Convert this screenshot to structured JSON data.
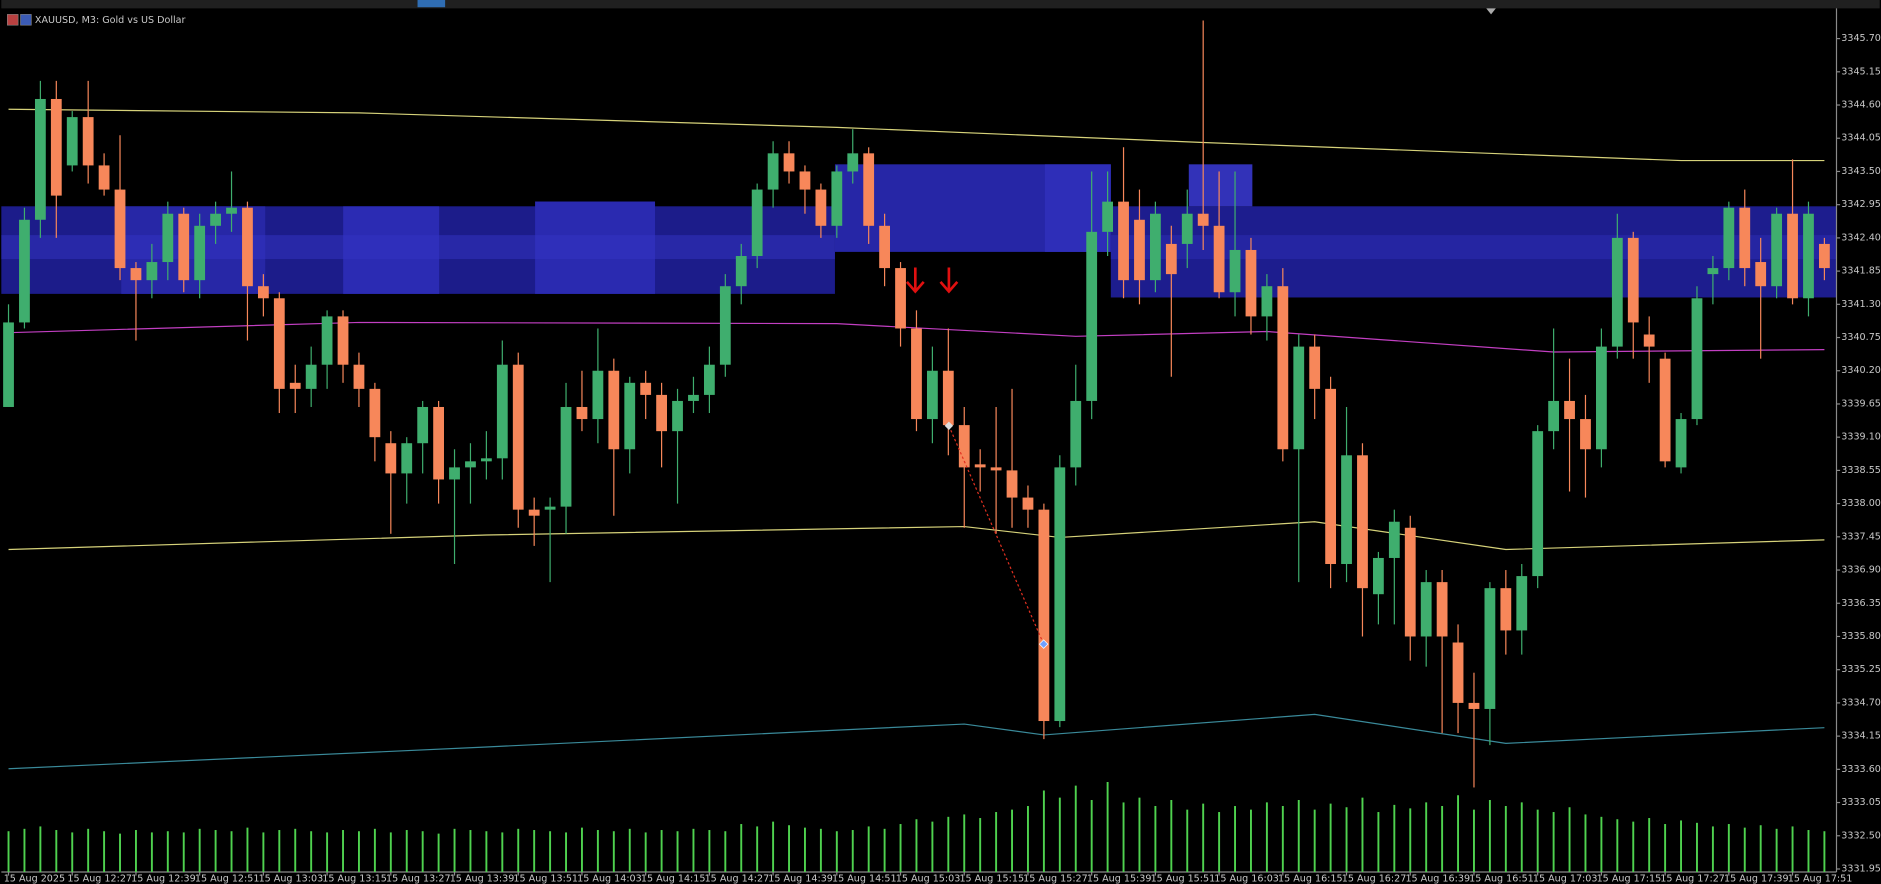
{
  "chart_data": {
    "type": "candlestick",
    "title": "XAUUSD, M3:  Gold vs US Dollar",
    "categories": [
      "15 Aug 2025",
      null,
      null,
      null,
      "15 Aug 12:27",
      null,
      null,
      null,
      "15 Aug 12:39",
      null,
      null,
      null,
      "15 Aug 12:51",
      null,
      null,
      null,
      "15 Aug 13:03",
      null,
      null,
      null,
      "15 Aug 13:15",
      null,
      null,
      null,
      "15 Aug 13:27",
      null,
      null,
      null,
      "15 Aug 13:39",
      null,
      null,
      null,
      "15 Aug 13:51",
      null,
      null,
      null,
      "15 Aug 14:03",
      null,
      null,
      null,
      "15 Aug 14:15",
      null,
      null,
      null,
      "15 Aug 14:27",
      null,
      null,
      null,
      "15 Aug 14:39",
      null,
      null,
      null,
      "15 Aug 14:51",
      null,
      null,
      null,
      "15 Aug 15:03",
      null,
      null,
      null,
      "15 Aug 15:15",
      null,
      null,
      null,
      "15 Aug 15:27",
      null,
      null,
      null,
      "15 Aug 15:39",
      null,
      null,
      null,
      "15 Aug 15:51",
      null,
      null,
      null,
      "15 Aug 16:03",
      null,
      null,
      null,
      "15 Aug 16:15",
      null,
      null,
      null,
      "15 Aug 16:27",
      null,
      null,
      null,
      "15 Aug 16:39",
      null,
      null,
      null,
      "15 Aug 16:51",
      null,
      null,
      null,
      "15 Aug 17:03",
      null,
      null,
      null,
      "15 Aug 17:15",
      null,
      null,
      null,
      "15 Aug 17:27",
      null,
      null,
      null,
      "15 Aug 17:39",
      null,
      null,
      null,
      "15 Aug 17:51",
      null,
      null
    ],
    "open": [
      3339.6,
      3341.0,
      3342.7,
      3344.7,
      3343.6,
      3344.4,
      3343.6,
      3343.2,
      3341.9,
      3341.7,
      3342.0,
      3342.8,
      3341.7,
      3342.6,
      3342.8,
      3342.9,
      3341.6,
      3341.4,
      3340.0,
      3339.9,
      3340.3,
      3341.1,
      3340.3,
      3339.9,
      3339.0,
      3338.5,
      3339.0,
      3339.6,
      3338.4,
      3338.6,
      3338.7,
      3338.75,
      3340.3,
      3337.9,
      3337.9,
      3337.95,
      3339.6,
      3339.4,
      3340.2,
      3338.9,
      3340.0,
      3339.8,
      3339.2,
      3339.7,
      3339.8,
      3340.3,
      3341.6,
      3342.1,
      3343.2,
      3343.8,
      3343.5,
      3343.2,
      3342.6,
      3343.5,
      3343.8,
      3342.6,
      3341.9,
      3340.9,
      3339.4,
      3340.2,
      3339.3,
      3338.65,
      3338.6,
      3338.55,
      3338.1,
      3337.9,
      3334.4,
      3338.6,
      3339.7,
      3342.5,
      3343.0,
      3342.7,
      3341.7,
      3342.3,
      3342.3,
      3342.8,
      3342.6,
      3341.5,
      3342.2,
      3341.1,
      3341.6,
      3338.9,
      3340.6,
      3339.9,
      3337.0,
      3338.8,
      3336.5,
      3337.1,
      3337.6,
      3335.8,
      3336.7,
      3335.7,
      3334.7,
      3334.6,
      3336.6,
      3335.9,
      3336.8,
      3339.2,
      3339.7,
      3339.4,
      3338.9,
      3340.6,
      3342.4,
      3340.8,
      3340.4,
      3338.6,
      3339.4,
      3341.8,
      3341.9,
      3342.9,
      3342.0,
      3341.6,
      3342.8,
      3341.4,
      3342.3
    ],
    "high": [
      3341.3,
      3342.9,
      3345.0,
      3345.0,
      3344.5,
      3345.0,
      3343.8,
      3344.1,
      3342.0,
      3342.3,
      3343.0,
      3342.9,
      3342.8,
      3343.0,
      3343.5,
      3343.0,
      3341.8,
      3341.5,
      3340.3,
      3340.6,
      3341.2,
      3341.2,
      3340.5,
      3340.0,
      3339.2,
      3339.1,
      3339.7,
      3339.7,
      3338.9,
      3339.0,
      3339.2,
      3340.7,
      3340.5,
      3338.1,
      3338.1,
      3340.0,
      3340.2,
      3340.9,
      3340.4,
      3340.1,
      3340.2,
      3340.0,
      3339.9,
      3340.1,
      3340.6,
      3341.8,
      3342.3,
      3343.3,
      3344.0,
      3344.0,
      3343.6,
      3343.3,
      3343.6,
      3344.2,
      3343.9,
      3342.8,
      3342.0,
      3341.2,
      3340.6,
      3340.9,
      3339.6,
      3338.9,
      3339.6,
      3339.9,
      3338.3,
      3338.0,
      3338.8,
      3340.3,
      3343.5,
      3343.5,
      3343.9,
      3343.2,
      3343.0,
      3342.6,
      3343.2,
      3346.0,
      3343.5,
      3343.5,
      3342.4,
      3341.8,
      3341.9,
      3340.8,
      3340.8,
      3340.1,
      3339.6,
      3339.0,
      3337.2,
      3337.9,
      3337.8,
      3336.9,
      3336.9,
      3336.0,
      3335.2,
      3336.7,
      3336.9,
      3337.0,
      3339.3,
      3340.9,
      3340.4,
      3339.8,
      3340.9,
      3342.8,
      3342.5,
      3341.1,
      3340.5,
      3339.5,
      3341.6,
      3342.1,
      3343.0,
      3343.2,
      3342.4,
      3342.9,
      3343.7,
      3343.0,
      3342.4
    ],
    "low": [
      3339.6,
      3340.9,
      3342.4,
      3342.4,
      3343.5,
      3343.3,
      3343.1,
      3341.7,
      3340.7,
      3341.4,
      3341.7,
      3341.5,
      3341.4,
      3342.3,
      3342.5,
      3340.7,
      3341.1,
      3339.5,
      3339.5,
      3339.6,
      3339.9,
      3340.0,
      3339.6,
      3338.7,
      3337.5,
      3338.0,
      3338.5,
      3338.0,
      3337.0,
      3338.0,
      3338.4,
      3338.4,
      3337.6,
      3337.3,
      3336.7,
      3337.5,
      3339.2,
      3339.0,
      3337.8,
      3338.5,
      3339.4,
      3338.6,
      3338.0,
      3339.5,
      3339.5,
      3340.1,
      3341.3,
      3341.9,
      3342.9,
      3343.3,
      3342.8,
      3342.4,
      3342.4,
      3343.3,
      3342.3,
      3341.6,
      3340.6,
      3339.2,
      3339.0,
      3338.8,
      3337.6,
      3338.2,
      3337.5,
      3337.6,
      3337.6,
      3334.1,
      3334.3,
      3338.3,
      3339.4,
      3342.1,
      3341.4,
      3341.3,
      3341.5,
      3340.1,
      3341.9,
      3342.2,
      3341.4,
      3341.1,
      3340.8,
      3340.7,
      3338.7,
      3336.7,
      3339.4,
      3336.6,
      3336.7,
      3335.8,
      3336.0,
      3336.0,
      3335.4,
      3335.3,
      3334.2,
      3334.2,
      3333.3,
      3334.0,
      3335.5,
      3335.5,
      3336.6,
      3338.9,
      3338.2,
      3338.1,
      3338.6,
      3340.4,
      3340.4,
      3340.0,
      3338.6,
      3338.5,
      3339.3,
      3341.3,
      3341.7,
      3341.6,
      3340.4,
      3341.4,
      3341.3,
      3341.1,
      3341.7
    ],
    "close": [
      3341.0,
      3342.7,
      3344.7,
      3343.1,
      3344.4,
      3343.6,
      3343.2,
      3341.9,
      3341.7,
      3342.0,
      3342.8,
      3341.7,
      3342.6,
      3342.8,
      3342.9,
      3341.6,
      3341.4,
      3339.9,
      3339.9,
      3340.3,
      3341.1,
      3340.3,
      3339.9,
      3339.1,
      3338.5,
      3339.0,
      3339.6,
      3338.4,
      3338.6,
      3338.7,
      3338.75,
      3340.3,
      3337.9,
      3337.8,
      3337.95,
      3339.6,
      3339.4,
      3340.2,
      3338.9,
      3340.0,
      3339.8,
      3339.2,
      3339.7,
      3339.8,
      3340.3,
      3341.6,
      3342.1,
      3343.2,
      3343.8,
      3343.5,
      3343.2,
      3342.6,
      3343.5,
      3343.8,
      3342.6,
      3341.9,
      3340.9,
      3339.4,
      3340.2,
      3339.3,
      3338.6,
      3338.6,
      3338.55,
      3338.1,
      3337.9,
      3334.4,
      3338.6,
      3339.7,
      3342.5,
      3343.0,
      3341.7,
      3341.7,
      3342.8,
      3341.8,
      3342.8,
      3342.6,
      3341.5,
      3342.2,
      3341.1,
      3341.6,
      3338.9,
      3340.6,
      3339.9,
      3337.0,
      3338.8,
      3336.6,
      3337.1,
      3337.7,
      3335.8,
      3336.7,
      3335.8,
      3334.7,
      3334.6,
      3336.6,
      3335.9,
      3336.8,
      3339.2,
      3339.7,
      3339.4,
      3338.9,
      3340.6,
      3342.4,
      3341.0,
      3340.6,
      3338.7,
      3339.4,
      3341.4,
      3341.9,
      3342.9,
      3341.9,
      3341.6,
      3342.8,
      3341.4,
      3342.8,
      3341.9
    ],
    "up_color": "#3fae6e",
    "down_color": "#f7875a",
    "volume": {
      "color": "#4fd24f",
      "values": [
        34,
        36,
        38,
        35,
        33,
        36,
        34,
        32,
        35,
        33,
        34,
        33,
        36,
        35,
        34,
        37,
        33,
        35,
        36,
        34,
        33,
        35,
        34,
        36,
        33,
        35,
        34,
        32,
        36,
        35,
        34,
        33,
        36,
        35,
        34,
        33,
        37,
        35,
        34,
        36,
        33,
        35,
        34,
        36,
        35,
        34,
        40,
        38,
        42,
        39,
        37,
        36,
        34,
        35,
        38,
        36,
        40,
        44,
        42,
        46,
        48,
        45,
        50,
        52,
        55,
        68,
        62,
        72,
        60,
        75,
        58,
        62,
        55,
        60,
        52,
        57,
        50,
        55,
        52,
        58,
        55,
        60,
        52,
        57,
        54,
        62,
        50,
        56,
        53,
        58,
        55,
        64,
        52,
        60,
        55,
        58,
        52,
        50,
        54,
        48,
        46,
        44,
        42,
        45,
        40,
        43,
        41,
        38,
        40,
        37,
        39,
        36,
        38,
        35,
        34
      ]
    },
    "indicators": [
      {
        "color": "#d6d27a",
        "x": [
          0,
          22,
          52,
          75,
          105,
          114
        ],
        "values": [
          3344.53,
          3344.47,
          3344.23,
          3343.98,
          3343.68,
          3343.68
        ]
      },
      {
        "color": "#c23fc2",
        "x": [
          0,
          22,
          52,
          67,
          79,
          97,
          114
        ],
        "values": [
          3340.83,
          3341.0,
          3340.98,
          3340.77,
          3340.85,
          3340.51,
          3340.55
        ]
      },
      {
        "color": "#d6d27a",
        "x": [
          0,
          30,
          60,
          66,
          82,
          94,
          114
        ],
        "values": [
          3337.24,
          3337.48,
          3337.62,
          3337.44,
          3337.7,
          3337.24,
          3337.4
        ]
      },
      {
        "color": "#3a8a9a",
        "x": [
          0,
          30,
          60,
          65,
          82,
          94,
          114
        ],
        "values": [
          3333.61,
          3333.97,
          3334.35,
          3334.17,
          3334.51,
          3334.03,
          3334.29
        ]
      }
    ],
    "ylim": [
      3331.9,
      3346.2
    ],
    "yticks": [
      {
        "value": 3345.7,
        "label": "3345.70"
      },
      {
        "value": 3345.15,
        "label": "3345.15"
      },
      {
        "value": 3344.6,
        "label": "3344.60"
      },
      {
        "value": 3344.05,
        "label": "3344.05"
      },
      {
        "value": 3343.5,
        "label": "3343.50"
      },
      {
        "value": 3342.95,
        "label": "3342.95"
      },
      {
        "value": 3342.4,
        "label": "3342.40"
      },
      {
        "value": 3341.85,
        "label": "3341.85"
      },
      {
        "value": 3341.3,
        "label": "3341.30"
      },
      {
        "value": 3340.75,
        "label": "3340.75"
      },
      {
        "value": 3340.2,
        "label": "3340.20"
      },
      {
        "value": 3339.65,
        "label": "3339.65"
      },
      {
        "value": 3339.1,
        "label": "3339.10"
      },
      {
        "value": 3338.55,
        "label": "3338.55"
      },
      {
        "value": 3338.0,
        "label": "3338.00"
      },
      {
        "value": 3337.45,
        "label": "3337.45"
      },
      {
        "value": 3336.9,
        "label": "3336.90"
      },
      {
        "value": 3336.35,
        "label": "3336.35"
      },
      {
        "value": 3335.8,
        "label": "3335.80"
      },
      {
        "value": 3335.25,
        "label": "3335.25"
      },
      {
        "value": 3334.7,
        "label": "3334.70"
      },
      {
        "value": 3334.15,
        "label": "3334.15"
      },
      {
        "value": 3333.6,
        "label": "3333.60"
      },
      {
        "value": 3333.05,
        "label": "3333.05"
      },
      {
        "value": 3332.5,
        "label": "3332.50"
      },
      {
        "value": 3331.95,
        "label": "3331.95"
      }
    ],
    "grid": false
  }
}
